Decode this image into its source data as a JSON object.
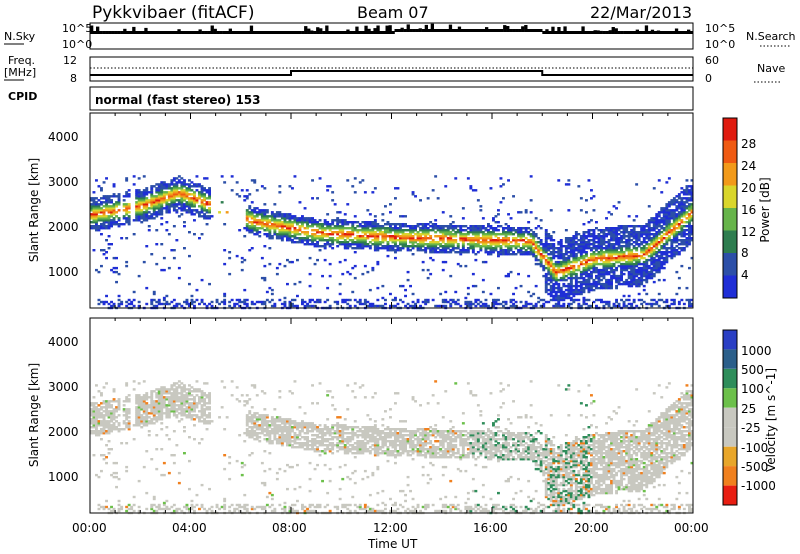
{
  "header": {
    "title": "Pykkvibaer (fitACF)",
    "beam": "Beam 07",
    "date": "22/Mar/2013"
  },
  "top_panels": {
    "nsky_label": "N.Sky",
    "nsky_ticks": [
      "10^5",
      "10^0"
    ],
    "nsearch_ticks": [
      "10^5",
      "10^0"
    ],
    "nsearch_label": "N.Search",
    "freq_label_1": "Freq.",
    "freq_label_2": "[MHz]",
    "freq_ticks": [
      "12",
      "8"
    ],
    "nave_ticks": [
      "60",
      "0"
    ],
    "nave_label": "Nave",
    "cpid_label": "CPID",
    "cpid_text": "normal (fast stereo) 153"
  },
  "panels": {
    "ylabel": "Slant Range [km]",
    "ytick_labels": [
      "1000",
      "2000",
      "3000",
      "4000"
    ],
    "xtick_labels": [
      "00:00",
      "04:00",
      "08:00",
      "12:00",
      "16:00",
      "20:00",
      "00:00"
    ],
    "xlabel": "Time UT"
  },
  "power_scale": {
    "label": "Power [dB]",
    "tick_labels": [
      "4",
      "8",
      "12",
      "16",
      "20",
      "24",
      "28"
    ],
    "colors": [
      "#1f2ed6",
      "#2c4fa8",
      "#2e7d4f",
      "#66b44a",
      "#d9d62b",
      "#f29a1a",
      "#ef5a12",
      "#e01b0f"
    ]
  },
  "velocity_scale": {
    "label": "Velocity [m s^-1]",
    "tick_labels": [
      "1000",
      "500",
      "100",
      "25",
      "-25",
      "-100",
      "-500",
      "-1000"
    ],
    "colors": [
      "#2a3fc4",
      "#2b5f8a",
      "#2e8d5a",
      "#6cc04a",
      "#c8c8c0",
      "#c8c8c0",
      "#e8a62a",
      "#f0801e",
      "#e81e12"
    ]
  },
  "chart_data": {
    "type": "heatmap",
    "x_range_hours_ut": [
      0,
      24
    ],
    "y_range_km": [
      200,
      4600
    ],
    "freq_steps": [
      {
        "start_h": 0.0,
        "end_h": 8.0,
        "mhz": 8.5
      },
      {
        "start_h": 8.0,
        "end_h": 18.0,
        "mhz": 9.5
      },
      {
        "start_h": 18.0,
        "end_h": 24.0,
        "mhz": 8.5
      }
    ],
    "echo_band_center_km": [
      {
        "h": 0.0,
        "km": 2300
      },
      {
        "h": 2.0,
        "km": 2500
      },
      {
        "h": 3.5,
        "km": 2800
      },
      {
        "h": 6.5,
        "km": 2150
      },
      {
        "h": 9.0,
        "km": 1900
      },
      {
        "h": 12.0,
        "km": 1800
      },
      {
        "h": 15.0,
        "km": 1750
      },
      {
        "h": 17.5,
        "km": 1700
      },
      {
        "h": 18.5,
        "km": 1000
      },
      {
        "h": 20.0,
        "km": 1300
      },
      {
        "h": 22.0,
        "km": 1400
      },
      {
        "h": 24.0,
        "km": 2400
      }
    ]
  }
}
